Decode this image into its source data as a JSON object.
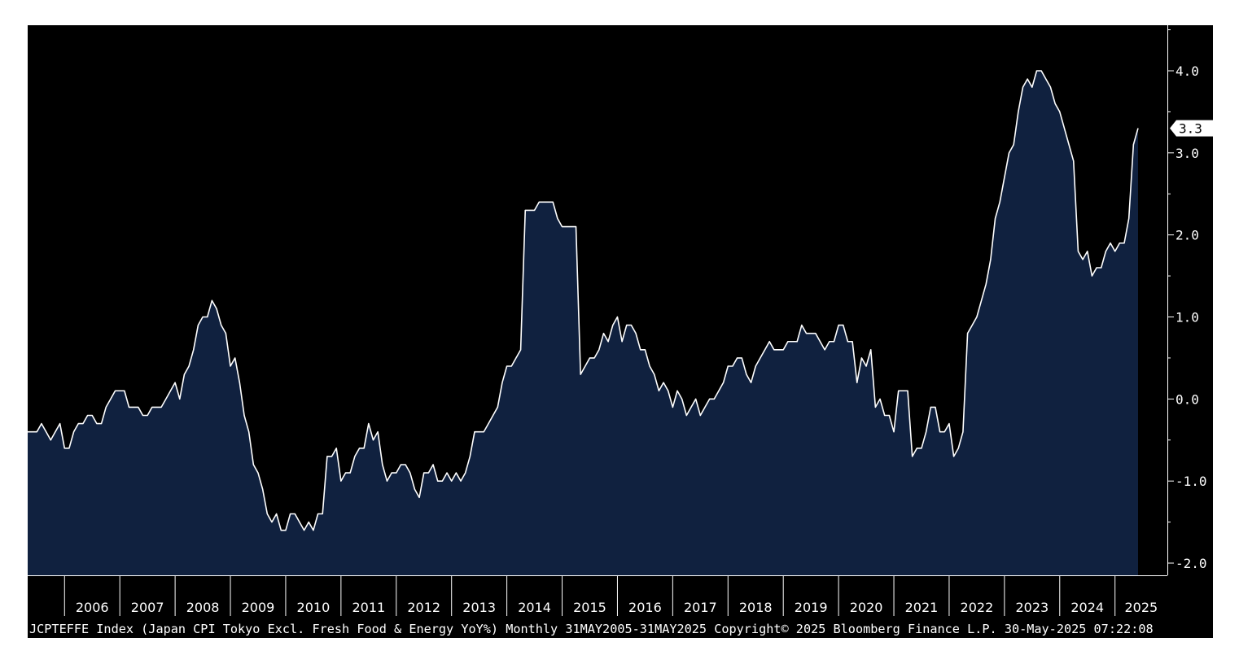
{
  "chart_data": {
    "type": "area",
    "frequency": "monthly",
    "start": "2005-05",
    "end": "2025-05",
    "ylim": [
      -2.2,
      4.5
    ],
    "yticks": [
      -2.0,
      -1.0,
      0.0,
      1.0,
      2.0,
      3.0,
      4.0
    ],
    "ytick_labels": [
      "-2.0",
      "-1.0",
      "0.0",
      "1.0",
      "2.0",
      "3.0",
      "4.0"
    ],
    "year_labels": [
      "2006",
      "2007",
      "2008",
      "2009",
      "2010",
      "2011",
      "2012",
      "2013",
      "2014",
      "2015",
      "2016",
      "2017",
      "2018",
      "2019",
      "2020",
      "2021",
      "2022",
      "2023",
      "2024",
      "2025"
    ],
    "last_value_label": "3.3",
    "grid": false,
    "values": [
      -0.4,
      -0.4,
      -0.4,
      -0.3,
      -0.4,
      -0.5,
      -0.4,
      -0.3,
      -0.6,
      -0.6,
      -0.4,
      -0.3,
      -0.3,
      -0.2,
      -0.2,
      -0.3,
      -0.3,
      -0.1,
      0.0,
      0.1,
      0.1,
      0.1,
      -0.1,
      -0.1,
      -0.1,
      -0.2,
      -0.2,
      -0.1,
      -0.1,
      -0.1,
      0.0,
      0.1,
      0.2,
      0.0,
      0.3,
      0.4,
      0.6,
      0.9,
      1.0,
      1.0,
      1.2,
      1.1,
      0.9,
      0.8,
      0.4,
      0.5,
      0.2,
      -0.2,
      -0.4,
      -0.8,
      -0.9,
      -1.1,
      -1.4,
      -1.5,
      -1.4,
      -1.6,
      -1.6,
      -1.4,
      -1.4,
      -1.5,
      -1.6,
      -1.5,
      -1.6,
      -1.4,
      -1.4,
      -0.7,
      -0.7,
      -0.6,
      -1.0,
      -0.9,
      -0.9,
      -0.7,
      -0.6,
      -0.6,
      -0.3,
      -0.5,
      -0.4,
      -0.8,
      -1.0,
      -0.9,
      -0.9,
      -0.8,
      -0.8,
      -0.9,
      -1.1,
      -1.2,
      -0.9,
      -0.9,
      -0.8,
      -1.0,
      -1.0,
      -0.9,
      -1.0,
      -0.9,
      -1.0,
      -0.9,
      -0.7,
      -0.4,
      -0.4,
      -0.4,
      -0.3,
      -0.2,
      -0.1,
      0.2,
      0.4,
      0.4,
      0.5,
      0.6,
      2.3,
      2.3,
      2.3,
      2.4,
      2.4,
      2.4,
      2.4,
      2.2,
      2.1,
      2.1,
      2.1,
      2.1,
      0.3,
      0.4,
      0.5,
      0.5,
      0.6,
      0.8,
      0.7,
      0.9,
      1.0,
      0.7,
      0.9,
      0.9,
      0.8,
      0.6,
      0.6,
      0.4,
      0.3,
      0.1,
      0.2,
      0.1,
      -0.1,
      0.1,
      0.0,
      -0.2,
      -0.1,
      0.0,
      -0.2,
      -0.1,
      0.0,
      0.0,
      0.1,
      0.2,
      0.4,
      0.4,
      0.5,
      0.5,
      0.3,
      0.2,
      0.4,
      0.5,
      0.6,
      0.7,
      0.6,
      0.6,
      0.6,
      0.7,
      0.7,
      0.7,
      0.9,
      0.8,
      0.8,
      0.8,
      0.7,
      0.6,
      0.7,
      0.7,
      0.9,
      0.9,
      0.7,
      0.7,
      0.2,
      0.5,
      0.4,
      0.6,
      -0.1,
      0.0,
      -0.2,
      -0.2,
      -0.4,
      0.1,
      0.1,
      0.1,
      -0.7,
      -0.6,
      -0.6,
      -0.4,
      -0.1,
      -0.1,
      -0.4,
      -0.4,
      -0.3,
      -0.7,
      -0.6,
      -0.4,
      0.8,
      0.9,
      1.0,
      1.2,
      1.4,
      1.7,
      2.2,
      2.4,
      2.7,
      3.0,
      3.1,
      3.5,
      3.8,
      3.9,
      3.8,
      4.0,
      4.0,
      3.9,
      3.8,
      3.6,
      3.5,
      3.3,
      3.1,
      2.9,
      1.8,
      1.7,
      1.8,
      1.5,
      1.6,
      1.6,
      1.8,
      1.9,
      1.8,
      1.9,
      1.9,
      2.2,
      3.1,
      3.3
    ]
  },
  "footer": {
    "caption": "JCPTEFFE Index (Japan CPI Tokyo Excl. Fresh Food & Energy YoY%)  Monthly 31MAY2005-31MAY2025  Copyright© 2025 Bloomberg Finance L.P.  30-May-2025 07:22:08"
  },
  "colors": {
    "background": "#000000",
    "area_fill": "#10213f",
    "line": "#ffffff",
    "axis": "#ffffff",
    "label_box": "#ffffff",
    "label_text": "#000000"
  }
}
